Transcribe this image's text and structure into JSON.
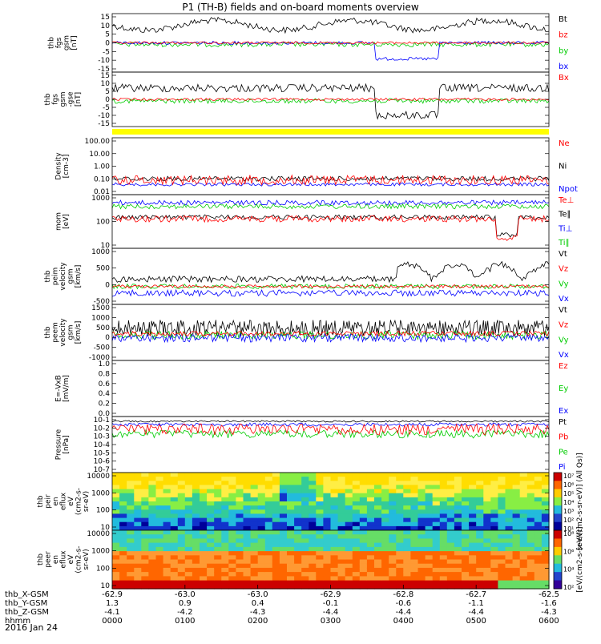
{
  "chart_data": {
    "type": "line",
    "title": "P1 (TH-B) fields and on-board moments overview",
    "date_label": "2016 Jan 24",
    "time_ticks": [
      "0000",
      "0100",
      "0200",
      "0300",
      "0400",
      "0500",
      "0600"
    ],
    "ephemeris": [
      {
        "name": "thb_X-GSM",
        "values": [
          "-62.9",
          "-63.0",
          "-63.0",
          "-62.9",
          "-62.8",
          "-62.7",
          "-62.5"
        ]
      },
      {
        "name": "thb_Y-GSM",
        "values": [
          "1.3",
          "0.9",
          "0.4",
          "-0.1",
          "-0.6",
          "-1.1",
          "-1.6"
        ]
      },
      {
        "name": "thb_Z-GSM",
        "values": [
          "-4.1",
          "-4.2",
          "-4.3",
          "-4.4",
          "-4.4",
          "-4.4",
          "-4.3"
        ]
      },
      {
        "name": "hhmm",
        "values": [
          "",
          "",
          "",
          "",
          "",
          "",
          ""
        ]
      }
    ],
    "colors": {
      "black": "#000000",
      "red": "#ff0000",
      "green": "#00cc00",
      "blue": "#0000ff",
      "yellow": "#ffff00"
    },
    "panels": [
      {
        "id": "fgs-gsm",
        "ylabel": [
          "thb",
          "fgs",
          "gsm",
          "[nT]"
        ],
        "ticks": [
          "15",
          "10",
          "5",
          "0",
          "-5",
          "-10",
          "-15"
        ],
        "ylim": [
          -17,
          17
        ],
        "legend": [
          {
            "name": "Bt",
            "color": "black"
          },
          {
            "name": "bz",
            "color": "red"
          },
          {
            "name": "by",
            "color": "green"
          },
          {
            "name": "bx",
            "color": "blue"
          }
        ]
      },
      {
        "id": "fgs-gse",
        "ylabel": [
          "thb",
          "fgs",
          "gsm",
          "-gse",
          "[nT]"
        ],
        "ticks": [
          "15",
          "10",
          "5",
          "0",
          "-5",
          "-10",
          "-15"
        ],
        "ylim": [
          -17,
          17
        ],
        "legend": [
          {
            "name": "Bx",
            "color": "red"
          }
        ]
      },
      {
        "id": "density",
        "ylabel": [
          "Density",
          "[cm-3]"
        ],
        "ticks": [
          "100.00",
          "10.00",
          "1.00",
          "0.10",
          "0.01"
        ],
        "log_scale": true,
        "legend": [
          {
            "name": "Ne",
            "color": "red"
          },
          {
            "name": "Ni",
            "color": "black"
          },
          {
            "name": "Npot",
            "color": "blue"
          }
        ]
      },
      {
        "id": "temperature",
        "ylabel": [
          "mom",
          "[eV]"
        ],
        "ticks": [
          "1000",
          "100",
          "10"
        ],
        "log_scale": true,
        "legend": [
          {
            "name": "Te⊥",
            "color": "red"
          },
          {
            "name": "Te∥",
            "color": "black"
          },
          {
            "name": "Ti⊥",
            "color": "blue"
          },
          {
            "name": "Ti∥",
            "color": "green"
          }
        ]
      },
      {
        "id": "peim-velocity",
        "ylabel": [
          "thb",
          "peim",
          "velocity",
          "gsm",
          "[km/s]"
        ],
        "ticks": [
          "1000",
          "500",
          "0",
          "-500"
        ],
        "ylim": [
          -700,
          1100
        ],
        "legend": [
          {
            "name": "Vt",
            "color": "black"
          },
          {
            "name": "Vz",
            "color": "red"
          },
          {
            "name": "Vy",
            "color": "green"
          },
          {
            "name": "Vx",
            "color": "blue"
          }
        ]
      },
      {
        "id": "peem-velocity",
        "ylabel": [
          "thb",
          "peem",
          "velocity",
          "gsm",
          "[km/s]"
        ],
        "ticks": [
          "1500",
          "1000",
          "500",
          "0",
          "-500",
          "-1000"
        ],
        "ylim": [
          -1300,
          1600
        ],
        "legend": [
          {
            "name": "Vt",
            "color": "black"
          },
          {
            "name": "Vz",
            "color": "red"
          },
          {
            "name": "Vy",
            "color": "green"
          },
          {
            "name": "Vx",
            "color": "blue"
          }
        ]
      },
      {
        "id": "efield",
        "ylabel": [
          "E=-VxB",
          "[mV/m]"
        ],
        "ticks": [
          "1.0",
          "0.8",
          "0.6",
          "0.4",
          "0.2",
          "0.0"
        ],
        "ylim": [
          0,
          1
        ],
        "legend": [
          {
            "name": "Ez",
            "color": "red"
          },
          {
            "name": "Ey",
            "color": "green"
          },
          {
            "name": "Ex",
            "color": "blue"
          }
        ]
      },
      {
        "id": "pressure",
        "ylabel": [
          "Pressure",
          "[nPa]"
        ],
        "ticks": [
          "10-1",
          "10-2",
          "10-3",
          "10-4",
          "10-5",
          "10-6",
          "10-7"
        ],
        "log_scale": true,
        "legend": [
          {
            "name": "Pt",
            "color": "black"
          },
          {
            "name": "Pb",
            "color": "red"
          },
          {
            "name": "Pe",
            "color": "green"
          },
          {
            "name": "Pi",
            "color": "blue"
          }
        ]
      },
      {
        "id": "peir-spectrogram",
        "ylabel": [
          "thb",
          "peir",
          "en",
          "eflux",
          "eV",
          "(cm2-s-",
          "sr-eV)"
        ],
        "ticks": [
          "10000",
          "1000",
          "100",
          "10"
        ],
        "log_scale": true,
        "colorbar_ticks": [
          "10⁷",
          "10⁶",
          "10⁵",
          "10⁴",
          "10³",
          "10²",
          "10¹"
        ],
        "colorbar_label": "[eV/(cm2-s-sr-eV)] (All Qs)]"
      },
      {
        "id": "peer-spectrogram",
        "ylabel": [
          "thb",
          "peer",
          "en",
          "eflux",
          "eV",
          "(cm2-s-",
          "sr-eV)"
        ],
        "ticks": [
          "10000",
          "1000",
          "100",
          "10"
        ],
        "log_scale": true,
        "colorbar_ticks": [
          "10⁸",
          "10⁶",
          "10⁴",
          "10²"
        ],
        "colorbar_label": "[eV/(cm2-s-sr-eV)]"
      }
    ]
  }
}
